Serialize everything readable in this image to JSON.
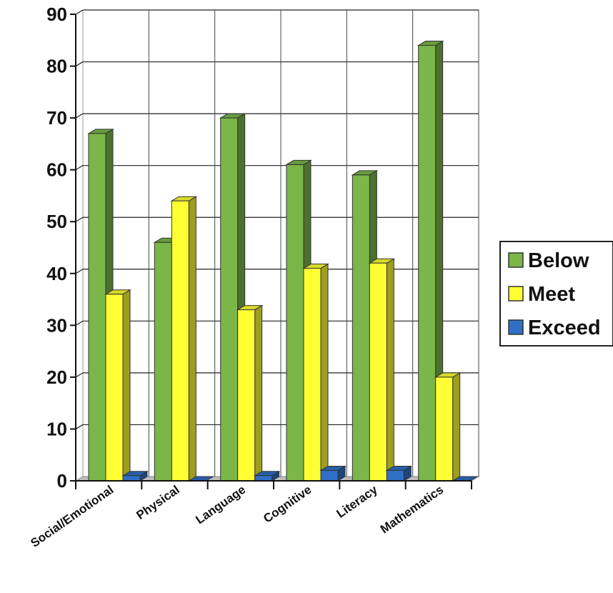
{
  "chart_data": {
    "type": "bar",
    "categories": [
      "Social/Emotional",
      "Physical",
      "Language",
      "Cognitive",
      "Literacy",
      "Mathematics"
    ],
    "series": [
      {
        "name": "Below",
        "values": [
          67,
          46,
          70,
          61,
          59,
          84
        ],
        "color": "#7ab648"
      },
      {
        "name": "Meet",
        "values": [
          36,
          54,
          33,
          41,
          42,
          20
        ],
        "color": "#ffff33"
      },
      {
        "name": "Exceed",
        "values": [
          1,
          0,
          1,
          2,
          2,
          0
        ],
        "color": "#2f6fc6"
      }
    ],
    "y_ticks": [
      "0",
      "10",
      "20",
      "30",
      "40",
      "50",
      "60",
      "70",
      "80",
      "90"
    ],
    "ylim": [
      0,
      90
    ],
    "grid": true,
    "legend_position": "right",
    "style": "3d-column"
  }
}
